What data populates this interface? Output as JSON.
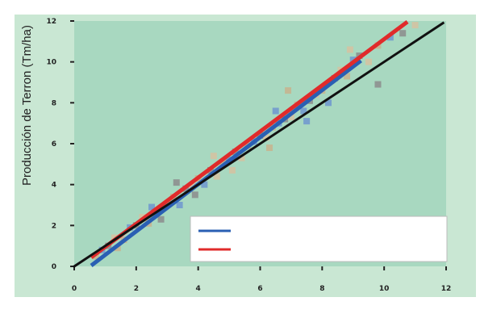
{
  "chart_data": {
    "type": "scatter",
    "title": "",
    "ylabel": "Producción de Terron (Tm/ha)",
    "xlabel": "",
    "xlim": [
      0,
      12
    ],
    "ylim": [
      0,
      12
    ],
    "grid": false,
    "legend_position": "bottom-right",
    "x_ticks": [
      "0",
      "2",
      "4",
      "6",
      "8",
      "10",
      "12"
    ],
    "y_ticks": [
      "0",
      "2",
      "4",
      "6",
      "8",
      "10",
      "12"
    ],
    "colors": {
      "plot_background": "#a8d8c0",
      "axis_panel": "#c9e7d3",
      "series_1": "#2a5fb3",
      "series_2": "#e02b2b",
      "identity_line": "#111111",
      "markers": [
        "#c8b38d",
        "#6f96cf",
        "#8c8c8c",
        "#d6c2a0"
      ]
    },
    "series": [
      {
        "name": "",
        "kind": "regression",
        "color": "#2a5fb3",
        "points": [
          [
            0.6,
            0.1
          ],
          [
            9.2,
            10.0
          ]
        ]
      },
      {
        "name": "",
        "kind": "regression",
        "color": "#e02b2b",
        "points": [
          [
            0.6,
            0.5
          ],
          [
            10.7,
            11.9
          ]
        ]
      },
      {
        "name": "",
        "kind": "identity",
        "color": "#111111",
        "points": [
          [
            0.0,
            0.0
          ],
          [
            11.9,
            11.9
          ]
        ]
      }
    ],
    "points": [
      {
        "x": 0.7,
        "y": 0.5
      },
      {
        "x": 0.9,
        "y": 0.8
      },
      {
        "x": 1.1,
        "y": 1.0
      },
      {
        "x": 1.3,
        "y": 1.4
      },
      {
        "x": 1.6,
        "y": 1.3
      },
      {
        "x": 1.8,
        "y": 1.9
      },
      {
        "x": 2.0,
        "y": 2.0
      },
      {
        "x": 2.2,
        "y": 2.4
      },
      {
        "x": 2.4,
        "y": 2.1
      },
      {
        "x": 2.6,
        "y": 2.7
      },
      {
        "x": 2.8,
        "y": 2.3
      },
      {
        "x": 3.0,
        "y": 3.1
      },
      {
        "x": 3.2,
        "y": 3.4
      },
      {
        "x": 3.4,
        "y": 3.0
      },
      {
        "x": 3.6,
        "y": 3.8
      },
      {
        "x": 3.8,
        "y": 3.9
      },
      {
        "x": 4.0,
        "y": 4.3
      },
      {
        "x": 4.2,
        "y": 4.0
      },
      {
        "x": 4.4,
        "y": 4.7
      },
      {
        "x": 4.6,
        "y": 4.4
      },
      {
        "x": 4.8,
        "y": 5.1
      },
      {
        "x": 5.0,
        "y": 5.2
      },
      {
        "x": 5.2,
        "y": 5.6
      },
      {
        "x": 5.4,
        "y": 5.3
      },
      {
        "x": 5.6,
        "y": 5.9
      },
      {
        "x": 5.8,
        "y": 6.1
      },
      {
        "x": 6.0,
        "y": 6.4
      },
      {
        "x": 6.2,
        "y": 6.3
      },
      {
        "x": 6.4,
        "y": 6.8
      },
      {
        "x": 6.6,
        "y": 7.0
      },
      {
        "x": 6.8,
        "y": 7.2
      },
      {
        "x": 7.0,
        "y": 7.3
      },
      {
        "x": 7.2,
        "y": 7.9
      },
      {
        "x": 7.4,
        "y": 7.6
      },
      {
        "x": 7.6,
        "y": 8.1
      },
      {
        "x": 7.8,
        "y": 8.4
      },
      {
        "x": 8.0,
        "y": 8.6
      },
      {
        "x": 8.2,
        "y": 8.0
      },
      {
        "x": 8.4,
        "y": 9.2
      },
      {
        "x": 8.6,
        "y": 9.6
      },
      {
        "x": 8.8,
        "y": 9.3
      },
      {
        "x": 9.0,
        "y": 10.1
      },
      {
        "x": 9.2,
        "y": 10.3
      },
      {
        "x": 9.5,
        "y": 10.0
      },
      {
        "x": 9.8,
        "y": 10.8
      },
      {
        "x": 10.2,
        "y": 11.2
      },
      {
        "x": 10.6,
        "y": 11.4
      },
      {
        "x": 11.0,
        "y": 11.8
      },
      {
        "x": 1.4,
        "y": 0.9
      },
      {
        "x": 2.5,
        "y": 2.9
      },
      {
        "x": 3.9,
        "y": 3.5
      },
      {
        "x": 5.1,
        "y": 4.7
      },
      {
        "x": 6.3,
        "y": 5.8
      },
      {
        "x": 7.5,
        "y": 7.1
      },
      {
        "x": 9.8,
        "y": 8.9
      },
      {
        "x": 4.5,
        "y": 5.4
      },
      {
        "x": 6.9,
        "y": 8.6
      },
      {
        "x": 6.5,
        "y": 7.6
      },
      {
        "x": 3.3,
        "y": 4.1
      },
      {
        "x": 8.9,
        "y": 10.6
      }
    ]
  }
}
